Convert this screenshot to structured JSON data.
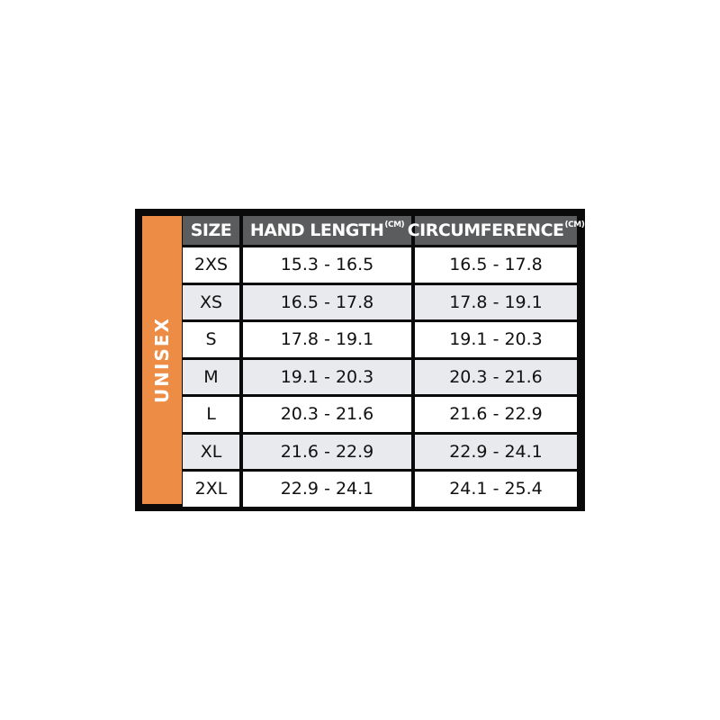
{
  "side_label": "UNISEX",
  "colors": {
    "accent": "#ec8c45",
    "header_bg": "#5b5c5e",
    "alt_row": "#e9eaed",
    "frame": "#0a0a0a"
  },
  "headers": [
    {
      "label": "SIZE",
      "unit": ""
    },
    {
      "label": "HAND LENGTH",
      "unit": "(CM)"
    },
    {
      "label": "CIRCUMFERENCE",
      "unit": "(CM)"
    }
  ],
  "rows": [
    [
      "2XS",
      "15.3 - 16.5",
      "16.5 - 17.8"
    ],
    [
      "XS",
      "16.5 - 17.8",
      "17.8 - 19.1"
    ],
    [
      "S",
      "17.8 - 19.1",
      "19.1 - 20.3"
    ],
    [
      "M",
      "19.1 - 20.3",
      "20.3 - 21.6"
    ],
    [
      "L",
      "20.3 - 21.6",
      "21.6 - 22.9"
    ],
    [
      "XL",
      "21.6 - 22.9",
      "22.9 - 24.1"
    ],
    [
      "2XL",
      "22.9 - 24.1",
      "24.1 - 25.4"
    ]
  ]
}
